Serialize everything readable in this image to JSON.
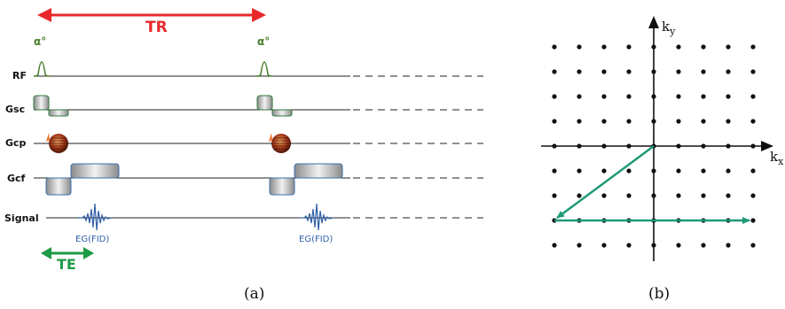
{
  "panel_a": {
    "tr_label": "TR",
    "te_label": "TE",
    "flip_angle_label": "α°",
    "rows": [
      "RF",
      "Gsc",
      "Gcp",
      "Gcf",
      "Signal"
    ],
    "echo_label": "EG(FID)",
    "caption": "(a)",
    "colors": {
      "tr": "#e8292b",
      "te": "#1e9a46",
      "rf": "#4a7d2a",
      "signal": "#2f5fa8"
    }
  },
  "panel_b": {
    "kx_label": "k",
    "kx_sub": "x",
    "ky_label": "k",
    "ky_sub": "y",
    "caption": "(b)",
    "grid_size": 9,
    "colors": {
      "trajectory": "#1f9a78"
    }
  }
}
